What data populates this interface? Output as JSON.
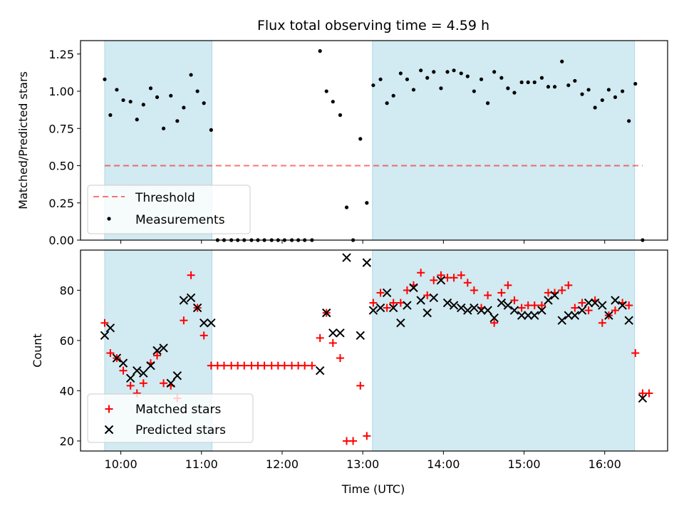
{
  "title": "Flux total observing time = 4.59 h",
  "xlabel": "Time (UTC)",
  "x_tick_labels": [
    "10:00",
    "11:00",
    "12:00",
    "13:00",
    "14:00",
    "15:00",
    "16:00"
  ],
  "colors": {
    "shading": "#add8e6",
    "threshold": "#ff0000",
    "measurements": "#000000",
    "matched": "#ff0000",
    "predicted": "#000000"
  },
  "chart_data": [
    {
      "type": "scatter",
      "x_unit": "hours UTC",
      "xlim": [
        9.5,
        16.78
      ],
      "ylim": [
        0,
        1.34
      ],
      "ylabel": "Matched/Predicted stars",
      "y_tick_labels": [
        "0.00",
        "0.25",
        "0.50",
        "0.75",
        "1.00",
        "1.25"
      ],
      "shaded_spans": [
        [
          9.8,
          11.13
        ],
        [
          13.12,
          16.37
        ]
      ],
      "threshold": {
        "value": 0.5,
        "from": 9.8,
        "to": 16.47
      },
      "legend": {
        "placement": "lower-left",
        "threshold_label": "Threshold",
        "measurements_label": "Measurements"
      },
      "series": [
        {
          "name": "Measurements",
          "points": [
            [
              9.8,
              1.08
            ],
            [
              9.87,
              0.84
            ],
            [
              9.95,
              1.01
            ],
            [
              10.03,
              0.94
            ],
            [
              10.12,
              0.93
            ],
            [
              10.2,
              0.81
            ],
            [
              10.28,
              0.91
            ],
            [
              10.37,
              1.02
            ],
            [
              10.45,
              0.96
            ],
            [
              10.53,
              0.75
            ],
            [
              10.62,
              0.97
            ],
            [
              10.7,
              0.8
            ],
            [
              10.78,
              0.89
            ],
            [
              10.87,
              1.11
            ],
            [
              10.95,
              1.0
            ],
            [
              11.03,
              0.92
            ],
            [
              11.12,
              0.74
            ],
            [
              11.2,
              0
            ],
            [
              11.28,
              0
            ],
            [
              11.37,
              0
            ],
            [
              11.45,
              0
            ],
            [
              11.53,
              0
            ],
            [
              11.62,
              0
            ],
            [
              11.7,
              0
            ],
            [
              11.78,
              0
            ],
            [
              11.87,
              0
            ],
            [
              11.95,
              0
            ],
            [
              12.03,
              0
            ],
            [
              12.12,
              0
            ],
            [
              12.2,
              0
            ],
            [
              12.28,
              0
            ],
            [
              12.37,
              0
            ],
            [
              12.47,
              1.27
            ],
            [
              12.55,
              1.0
            ],
            [
              12.63,
              0.93
            ],
            [
              12.72,
              0.84
            ],
            [
              12.8,
              0.22
            ],
            [
              12.88,
              0.0
            ],
            [
              12.97,
              0.68
            ],
            [
              13.05,
              0.25
            ],
            [
              13.13,
              1.04
            ],
            [
              13.22,
              1.08
            ],
            [
              13.3,
              0.92
            ],
            [
              13.38,
              0.97
            ],
            [
              13.47,
              1.12
            ],
            [
              13.55,
              1.08
            ],
            [
              13.63,
              1.01
            ],
            [
              13.72,
              1.14
            ],
            [
              13.8,
              1.09
            ],
            [
              13.88,
              1.13
            ],
            [
              13.97,
              1.02
            ],
            [
              14.05,
              1.13
            ],
            [
              14.13,
              1.14
            ],
            [
              14.22,
              1.12
            ],
            [
              14.3,
              1.1
            ],
            [
              14.38,
              1.0
            ],
            [
              14.47,
              1.08
            ],
            [
              14.55,
              0.92
            ],
            [
              14.63,
              1.13
            ],
            [
              14.72,
              1.09
            ],
            [
              14.8,
              1.02
            ],
            [
              14.88,
              0.99
            ],
            [
              14.97,
              1.06
            ],
            [
              15.05,
              1.06
            ],
            [
              15.13,
              1.06
            ],
            [
              15.22,
              1.09
            ],
            [
              15.3,
              1.03
            ],
            [
              15.38,
              1.03
            ],
            [
              15.47,
              1.2
            ],
            [
              15.55,
              1.04
            ],
            [
              15.63,
              1.07
            ],
            [
              15.72,
              0.98
            ],
            [
              15.8,
              1.01
            ],
            [
              15.88,
              0.89
            ],
            [
              15.97,
              0.94
            ],
            [
              16.05,
              1.01
            ],
            [
              16.13,
              0.96
            ],
            [
              16.22,
              1.0
            ],
            [
              16.3,
              0.8
            ],
            [
              16.38,
              1.05
            ],
            [
              16.47,
              0.0
            ]
          ]
        }
      ]
    },
    {
      "type": "scatter",
      "x_unit": "hours UTC",
      "xlim": [
        9.5,
        16.78
      ],
      "ylim": [
        16,
        96
      ],
      "ylabel": "Count",
      "y_tick_labels": [
        "20",
        "40",
        "60",
        "80"
      ],
      "shaded_spans": [
        [
          9.8,
          11.13
        ],
        [
          13.12,
          16.37
        ]
      ],
      "legend": {
        "placement": "lower-left"
      },
      "series": [
        {
          "name": "Matched stars",
          "marker": "plus",
          "points": [
            [
              9.8,
              67
            ],
            [
              9.87,
              55
            ],
            [
              9.95,
              53
            ],
            [
              10.03,
              48
            ],
            [
              10.12,
              42
            ],
            [
              10.2,
              39
            ],
            [
              10.28,
              43
            ],
            [
              10.37,
              51
            ],
            [
              10.45,
              54
            ],
            [
              10.53,
              43
            ],
            [
              10.62,
              42
            ],
            [
              10.7,
              37
            ],
            [
              10.78,
              68
            ],
            [
              10.87,
              86
            ],
            [
              10.95,
              73
            ],
            [
              11.03,
              62
            ],
            [
              11.12,
              50
            ],
            [
              11.2,
              50
            ],
            [
              11.28,
              50
            ],
            [
              11.37,
              50
            ],
            [
              11.45,
              50
            ],
            [
              11.53,
              50
            ],
            [
              11.62,
              50
            ],
            [
              11.7,
              50
            ],
            [
              11.78,
              50
            ],
            [
              11.87,
              50
            ],
            [
              11.95,
              50
            ],
            [
              12.03,
              50
            ],
            [
              12.12,
              50
            ],
            [
              12.2,
              50
            ],
            [
              12.28,
              50
            ],
            [
              12.37,
              50
            ],
            [
              12.47,
              61
            ],
            [
              12.55,
              71
            ],
            [
              12.63,
              59
            ],
            [
              12.72,
              53
            ],
            [
              12.8,
              20
            ],
            [
              12.88,
              20
            ],
            [
              12.97,
              42
            ],
            [
              13.05,
              22
            ],
            [
              13.13,
              75
            ],
            [
              13.22,
              79
            ],
            [
              13.3,
              73
            ],
            [
              13.38,
              75
            ],
            [
              13.47,
              75
            ],
            [
              13.55,
              80
            ],
            [
              13.63,
              82
            ],
            [
              13.72,
              87
            ],
            [
              13.8,
              78
            ],
            [
              13.88,
              84
            ],
            [
              13.97,
              86
            ],
            [
              14.05,
              85
            ],
            [
              14.13,
              85
            ],
            [
              14.22,
              86
            ],
            [
              14.3,
              83
            ],
            [
              14.38,
              80
            ],
            [
              14.47,
              73
            ],
            [
              14.55,
              78
            ],
            [
              14.63,
              67
            ],
            [
              14.72,
              79
            ],
            [
              14.8,
              82
            ],
            [
              14.88,
              76
            ],
            [
              14.97,
              73
            ],
            [
              15.05,
              74
            ],
            [
              15.13,
              74
            ],
            [
              15.22,
              74
            ],
            [
              15.3,
              79
            ],
            [
              15.38,
              79
            ],
            [
              15.47,
              80
            ],
            [
              15.55,
              82
            ],
            [
              15.63,
              73
            ],
            [
              15.72,
              75
            ],
            [
              15.8,
              72
            ],
            [
              15.88,
              76
            ],
            [
              15.97,
              67
            ],
            [
              16.05,
              70
            ],
            [
              16.13,
              72
            ],
            [
              16.22,
              75
            ],
            [
              16.3,
              74
            ],
            [
              16.38,
              55
            ],
            [
              16.47,
              39
            ],
            [
              16.55,
              39
            ]
          ]
        },
        {
          "name": "Predicted stars",
          "marker": "x",
          "points": [
            [
              9.8,
              62
            ],
            [
              9.87,
              65
            ],
            [
              9.95,
              53
            ],
            [
              10.03,
              51
            ],
            [
              10.12,
              45
            ],
            [
              10.2,
              48
            ],
            [
              10.28,
              47
            ],
            [
              10.37,
              50
            ],
            [
              10.45,
              56
            ],
            [
              10.53,
              57
            ],
            [
              10.62,
              43
            ],
            [
              10.7,
              46
            ],
            [
              10.78,
              76
            ],
            [
              10.87,
              77
            ],
            [
              10.95,
              73
            ],
            [
              11.03,
              67
            ],
            [
              11.12,
              67
            ],
            [
              12.47,
              48
            ],
            [
              12.55,
              71
            ],
            [
              12.63,
              63
            ],
            [
              12.72,
              63
            ],
            [
              12.8,
              93
            ],
            [
              12.97,
              62
            ],
            [
              13.05,
              91
            ],
            [
              13.13,
              72
            ],
            [
              13.22,
              73
            ],
            [
              13.3,
              79
            ],
            [
              13.38,
              73
            ],
            [
              13.47,
              67
            ],
            [
              13.55,
              74
            ],
            [
              13.63,
              81
            ],
            [
              13.72,
              76
            ],
            [
              13.8,
              71
            ],
            [
              13.88,
              77
            ],
            [
              13.97,
              84
            ],
            [
              14.05,
              75
            ],
            [
              14.13,
              74
            ],
            [
              14.22,
              73
            ],
            [
              14.3,
              72
            ],
            [
              14.38,
              73
            ],
            [
              14.47,
              72
            ],
            [
              14.55,
              72
            ],
            [
              14.63,
              69
            ],
            [
              14.72,
              75
            ],
            [
              14.8,
              74
            ],
            [
              14.88,
              72
            ],
            [
              14.97,
              70
            ],
            [
              15.05,
              70
            ],
            [
              15.13,
              70
            ],
            [
              15.22,
              72
            ],
            [
              15.3,
              76
            ],
            [
              15.38,
              78
            ],
            [
              15.47,
              68
            ],
            [
              15.55,
              70
            ],
            [
              15.63,
              70
            ],
            [
              15.72,
              72
            ],
            [
              15.8,
              75
            ],
            [
              15.88,
              75
            ],
            [
              15.97,
              74
            ],
            [
              16.05,
              70
            ],
            [
              16.13,
              76
            ],
            [
              16.22,
              74
            ],
            [
              16.3,
              68
            ],
            [
              16.47,
              37
            ]
          ]
        }
      ]
    }
  ]
}
